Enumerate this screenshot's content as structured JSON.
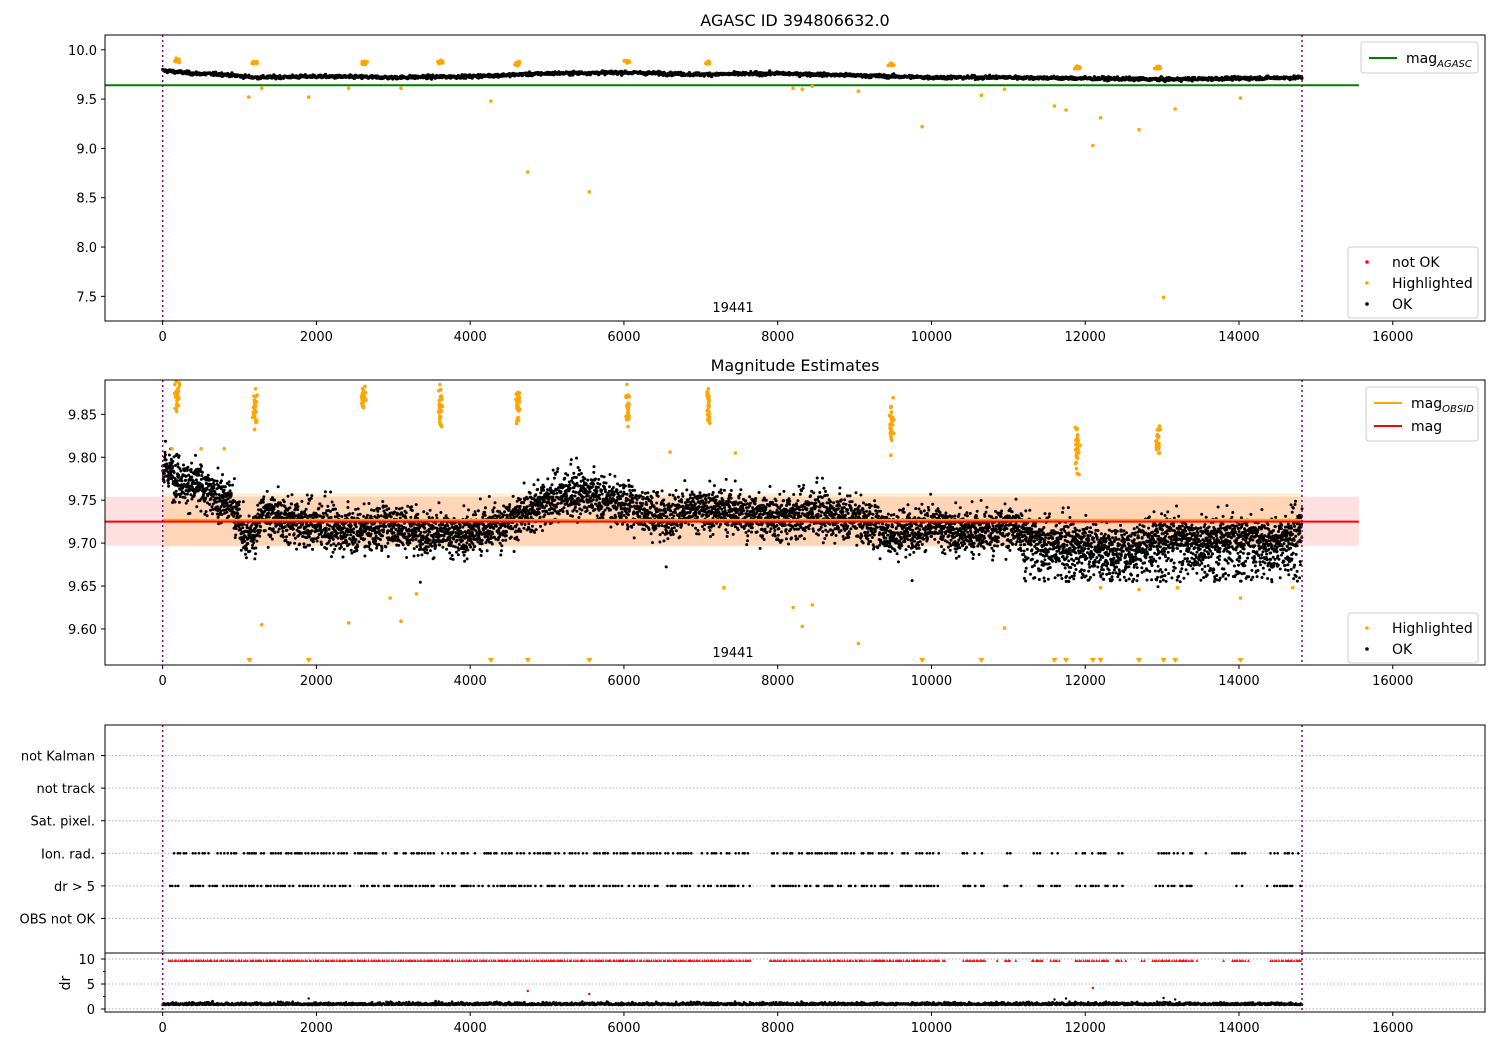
{
  "chart_data": [
    {
      "type": "scatter",
      "title": "AGASC ID 394806632.0",
      "xlim": [
        -750,
        17200
      ],
      "ylim": [
        7.25,
        10.15
      ],
      "xticks": [
        "0",
        "2000",
        "4000",
        "6000",
        "8000",
        "10000",
        "12000",
        "14000",
        "16000"
      ],
      "xtick_values": [
        0,
        2000,
        4000,
        6000,
        8000,
        10000,
        12000,
        14000,
        16000
      ],
      "yticks": [
        "10.0",
        "9.5",
        "9.0",
        "8.5",
        "8.0",
        "7.5"
      ],
      "ytick_values": [
        10.0,
        9.5,
        9.0,
        8.5,
        8.0,
        7.5
      ],
      "annotation": "19441",
      "annotation_pos": [
        7300,
        7.3
      ],
      "mag_agasc": 9.64,
      "mag_agasc_x_range": [
        -750,
        15560
      ],
      "obs_bounds": [
        0,
        14820
      ],
      "ok_baseline": [
        [
          0,
          9.79
        ],
        [
          400,
          9.76
        ],
        [
          800,
          9.75
        ],
        [
          1200,
          9.72
        ],
        [
          2000,
          9.73
        ],
        [
          3000,
          9.72
        ],
        [
          4000,
          9.73
        ],
        [
          5000,
          9.76
        ],
        [
          6000,
          9.77
        ],
        [
          7000,
          9.75
        ],
        [
          8000,
          9.76
        ],
        [
          9000,
          9.74
        ],
        [
          10000,
          9.72
        ],
        [
          11000,
          9.72
        ],
        [
          12000,
          9.71
        ],
        [
          13000,
          9.7
        ],
        [
          14000,
          9.71
        ],
        [
          14820,
          9.72
        ]
      ],
      "highlight_clusters": [
        [
          190,
          9.89
        ],
        [
          1200,
          9.87
        ],
        [
          2610,
          9.87
        ],
        [
          3610,
          9.88
        ],
        [
          4620,
          9.86
        ],
        [
          6050,
          9.88
        ],
        [
          7100,
          9.87
        ],
        [
          9480,
          9.85
        ],
        [
          11900,
          9.82
        ],
        [
          12950,
          9.82
        ]
      ],
      "highlight_outliers": [
        [
          1120,
          9.52
        ],
        [
          1290,
          9.61
        ],
        [
          1900,
          9.52
        ],
        [
          2420,
          9.61
        ],
        [
          3100,
          9.61
        ],
        [
          4270,
          9.48
        ],
        [
          4750,
          8.76
        ],
        [
          5550,
          8.56
        ],
        [
          8200,
          9.61
        ],
        [
          8320,
          9.6
        ],
        [
          8450,
          9.63
        ],
        [
          9050,
          9.58
        ],
        [
          9880,
          9.22
        ],
        [
          10650,
          9.54
        ],
        [
          10950,
          9.6
        ],
        [
          11600,
          9.43
        ],
        [
          11750,
          9.39
        ],
        [
          12100,
          9.03
        ],
        [
          12200,
          9.31
        ],
        [
          12700,
          9.19
        ],
        [
          13020,
          7.49
        ],
        [
          13170,
          9.4
        ],
        [
          14020,
          9.51
        ]
      ],
      "legend_top": [
        {
          "label": "mag",
          "sub": "AGASC",
          "color": "#008000"
        }
      ],
      "legend_bottom": [
        {
          "label": "not OK",
          "color": "#ff0000"
        },
        {
          "label": "Highlighted",
          "color": "#ffa500"
        },
        {
          "label": "OK",
          "color": "#000000"
        }
      ]
    },
    {
      "type": "scatter",
      "title": "Magnitude Estimates",
      "xlim": [
        -750,
        17200
      ],
      "ylim": [
        9.558,
        9.89
      ],
      "xticks": [
        "0",
        "2000",
        "4000",
        "6000",
        "8000",
        "10000",
        "12000",
        "14000",
        "16000"
      ],
      "xtick_values": [
        0,
        2000,
        4000,
        6000,
        8000,
        10000,
        12000,
        14000,
        16000
      ],
      "yticks": [
        "9.85",
        "9.80",
        "9.75",
        "9.70",
        "9.65",
        "9.60"
      ],
      "ytick_values": [
        9.85,
        9.8,
        9.75,
        9.7,
        9.65,
        9.6
      ],
      "annotation": "19441",
      "annotation_pos": [
        7300,
        9.563
      ],
      "mag": 9.725,
      "mag_band": [
        9.697,
        9.754
      ],
      "mag_x_range": [
        -750,
        15560
      ],
      "mag_obsid": 9.727,
      "mag_obsid_band": [
        9.696,
        9.758
      ],
      "mag_obsid_x_range": [
        0,
        14820
      ],
      "obs_bounds": [
        0,
        14820
      ],
      "ok_baseline": [
        [
          0,
          9.79
        ],
        [
          300,
          9.77
        ],
        [
          600,
          9.76
        ],
        [
          900,
          9.745
        ],
        [
          1100,
          9.7
        ],
        [
          1300,
          9.735
        ],
        [
          2000,
          9.72
        ],
        [
          2500,
          9.715
        ],
        [
          3000,
          9.72
        ],
        [
          3500,
          9.71
        ],
        [
          4000,
          9.71
        ],
        [
          4500,
          9.725
        ],
        [
          5000,
          9.75
        ],
        [
          5500,
          9.76
        ],
        [
          6000,
          9.745
        ],
        [
          6500,
          9.73
        ],
        [
          7000,
          9.74
        ],
        [
          7500,
          9.735
        ],
        [
          8000,
          9.73
        ],
        [
          8500,
          9.735
        ],
        [
          9000,
          9.73
        ],
        [
          9500,
          9.71
        ],
        [
          10000,
          9.72
        ],
        [
          10500,
          9.71
        ],
        [
          11000,
          9.72
        ],
        [
          11500,
          9.7
        ],
        [
          12000,
          9.7
        ],
        [
          12500,
          9.69
        ],
        [
          13000,
          9.71
        ],
        [
          13500,
          9.7
        ],
        [
          14000,
          9.71
        ],
        [
          14500,
          9.7
        ],
        [
          14820,
          9.72
        ]
      ],
      "highlight_clusters": [
        [
          190,
          9.87,
          0.03
        ],
        [
          1200,
          9.86,
          0.04
        ],
        [
          2610,
          9.87,
          0.02
        ],
        [
          3610,
          9.86,
          0.04
        ],
        [
          4620,
          9.86,
          0.03
        ],
        [
          6050,
          9.86,
          0.04
        ],
        [
          7100,
          9.86,
          0.04
        ],
        [
          9480,
          9.84,
          0.04
        ],
        [
          11900,
          9.81,
          0.04
        ],
        [
          12950,
          9.82,
          0.03
        ]
      ],
      "highlight_outliers": [
        [
          120,
          9.81
        ],
        [
          500,
          9.81
        ],
        [
          800,
          9.81
        ],
        [
          1290,
          9.605
        ],
        [
          2420,
          9.607
        ],
        [
          2960,
          9.636
        ],
        [
          3100,
          9.609
        ],
        [
          3300,
          9.641
        ],
        [
          7300,
          9.648
        ],
        [
          8200,
          9.625
        ],
        [
          8320,
          9.603
        ],
        [
          8450,
          9.628
        ],
        [
          9050,
          9.583
        ],
        [
          10950,
          9.601
        ],
        [
          12200,
          9.648
        ],
        [
          12700,
          9.646
        ],
        [
          13200,
          9.648
        ],
        [
          14020,
          9.636
        ],
        [
          14700,
          9.648
        ],
        [
          7450,
          9.805
        ],
        [
          6600,
          9.806
        ]
      ],
      "lower_limit_markers": [
        1130,
        1900,
        4270,
        4750,
        5550,
        9880,
        10650,
        11600,
        11750,
        12100,
        12200,
        12700,
        13020,
        13170,
        14020
      ],
      "legend_top": [
        {
          "label": "mag",
          "sub": "OBSID",
          "color": "#ffa500"
        },
        {
          "label": "mag",
          "sub": "",
          "color": "#ff0000"
        }
      ],
      "legend_bottom": [
        {
          "label": "Highlighted",
          "color": "#ffa500"
        },
        {
          "label": "OK",
          "color": "#000000"
        }
      ]
    },
    {
      "type": "scatter",
      "title": "",
      "xlim": [
        -750,
        17200
      ],
      "categories": [
        "not Kalman",
        "not track",
        "Sat. pixel.",
        "Ion. rad.",
        "dr > 5",
        "OBS not OK"
      ],
      "flag_rows_with_data": [
        "Ion. rad.",
        "dr > 5"
      ],
      "obs_bounds": [
        0,
        14820
      ],
      "flag_gaps": [
        [
          7650,
          7900
        ],
        [
          10100,
          10400
        ],
        [
          10700,
          10950
        ],
        [
          11050,
          11300
        ],
        [
          11450,
          11550
        ],
        [
          11650,
          11850
        ],
        [
          12300,
          12400
        ],
        [
          12500,
          12900
        ],
        [
          13400,
          13500
        ],
        [
          13500,
          13900
        ],
        [
          14100,
          14400
        ]
      ],
      "dr_ylim": [
        -0.6,
        11.2
      ],
      "dr_yticks": [
        "10",
        "5",
        "0"
      ],
      "dr_ytick_values": [
        10,
        5,
        0
      ],
      "dr_ylabel": "dr",
      "dr_xticks": [
        "0",
        "2000",
        "4000",
        "6000",
        "8000",
        "10000",
        "12000",
        "14000",
        "16000"
      ],
      "dr_xtick_values": [
        0,
        2000,
        4000,
        6000,
        8000,
        10000,
        12000,
        14000,
        16000
      ],
      "dr_baseline": 0.8,
      "dr_capped": 9.7,
      "dr_outliers": [
        [
          1900,
          2.1
        ],
        [
          4750,
          3.6
        ],
        [
          5550,
          3.0
        ],
        [
          11600,
          1.9
        ],
        [
          11750,
          2.1
        ],
        [
          12100,
          4.2
        ],
        [
          13020,
          2.2
        ],
        [
          13170,
          1.9
        ]
      ]
    }
  ]
}
